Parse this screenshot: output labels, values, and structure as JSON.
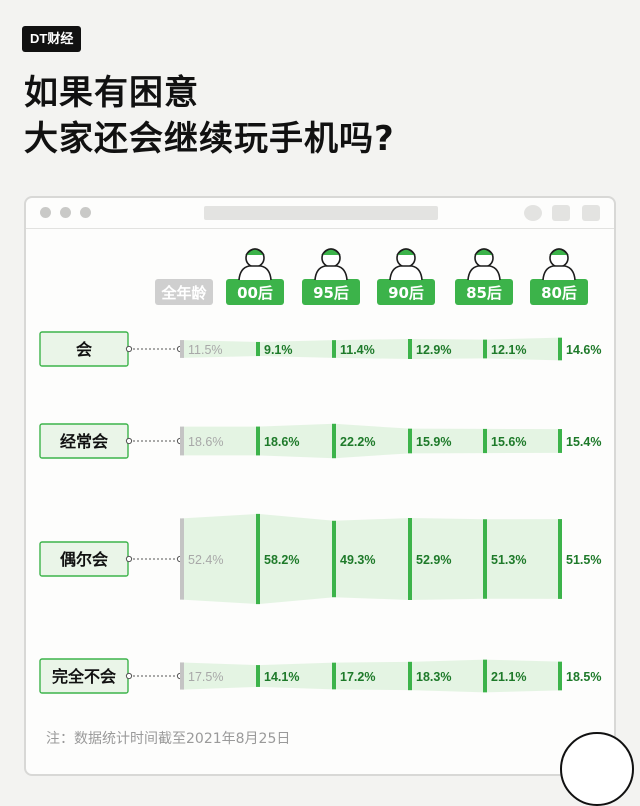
{
  "brand": {
    "label": "DT财经"
  },
  "headline": {
    "line1": "如果有困意",
    "line2": "大家还会继续玩手机吗?"
  },
  "note": "注：数据统计时间截至2021年8月25日",
  "colors": {
    "accent": "#3cb34a",
    "fill": "#e3f3e2",
    "gray": "#c4c4c4",
    "grayText": "#a8a8a8"
  },
  "chart_data": {
    "type": "bar",
    "categories": [
      "会",
      "经常会",
      "偶尔会",
      "完全不会"
    ],
    "groups": [
      "全年龄",
      "00后",
      "95后",
      "90后",
      "85后",
      "80后"
    ],
    "series": [
      {
        "name": "全年龄",
        "values": [
          11.5,
          18.6,
          52.4,
          17.5
        ]
      },
      {
        "name": "00后",
        "values": [
          9.1,
          18.6,
          58.2,
          14.1
        ]
      },
      {
        "name": "95后",
        "values": [
          11.4,
          22.2,
          49.3,
          17.2
        ]
      },
      {
        "name": "90后",
        "values": [
          12.9,
          15.9,
          52.9,
          18.3
        ]
      },
      {
        "name": "85后",
        "values": [
          12.1,
          15.6,
          51.3,
          21.1
        ]
      },
      {
        "name": "80后",
        "values": [
          14.6,
          15.4,
          51.5,
          18.5
        ]
      }
    ],
    "unit": "%"
  }
}
